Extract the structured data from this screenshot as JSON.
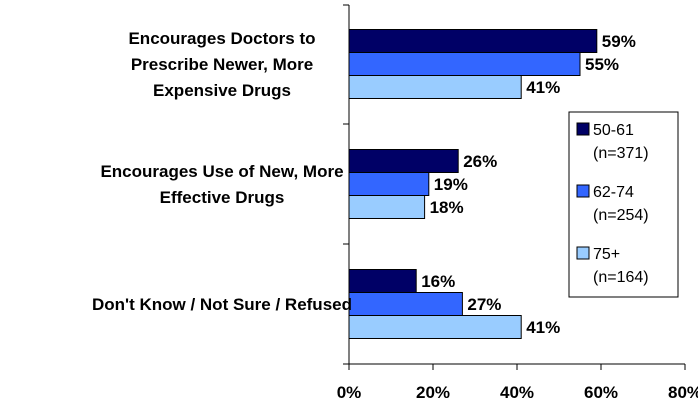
{
  "chart_data": {
    "type": "bar",
    "orientation": "horizontal",
    "categories": [
      [
        "Encourages Doctors to",
        "Prescribe Newer, More",
        "Expensive Drugs"
      ],
      [
        "Encourages Use of New, More",
        "Effective Drugs"
      ],
      [
        "Don't Know / Not Sure / Refused"
      ]
    ],
    "series": [
      {
        "name": "50-61",
        "sub": "(n=371)",
        "color": "#000066",
        "values": [
          59,
          26,
          16
        ],
        "labels": [
          "59%",
          "26%",
          "16%"
        ]
      },
      {
        "name": "62-74",
        "sub": "(n=254)",
        "color": "#3366ff",
        "values": [
          55,
          19,
          27
        ],
        "labels": [
          "55%",
          "19%",
          "27%"
        ]
      },
      {
        "name": "75+",
        "sub": "(n=164)",
        "color": "#99ccff",
        "values": [
          41,
          18,
          41
        ],
        "labels": [
          "41%",
          "18%",
          "41%"
        ]
      }
    ],
    "xlim": [
      0,
      80
    ],
    "xticks": [
      0,
      20,
      40,
      60,
      80
    ],
    "xtick_labels": [
      "0%",
      "20%",
      "40%",
      "60%",
      "80%"
    ],
    "title": "",
    "xlabel": "",
    "ylabel": "",
    "grid": false,
    "legend": "right"
  }
}
